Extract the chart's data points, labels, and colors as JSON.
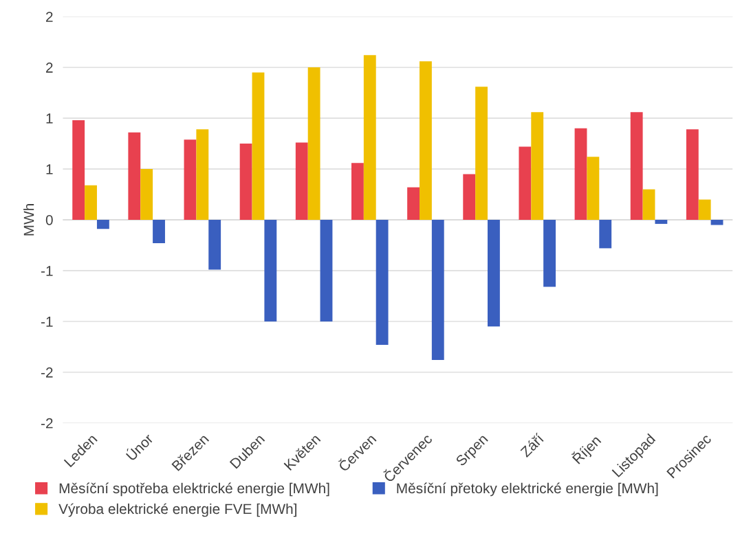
{
  "chart_data": {
    "type": "bar",
    "ylabel": "MWh",
    "categories": [
      "Leden",
      "Únor",
      "Březen",
      "Duben",
      "Květen",
      "Červen",
      "Červenec",
      "Srpen",
      "Září",
      "Říjen",
      "Listopad",
      "Prosinec"
    ],
    "series": [
      {
        "name": "Měsíční spotřeba elektrické energie [MWh]",
        "color": "#e8414f",
        "values": [
          0.98,
          0.86,
          0.79,
          0.75,
          0.76,
          0.56,
          0.32,
          0.45,
          0.72,
          0.9,
          1.06,
          0.89
        ]
      },
      {
        "name": "Výroba elektrické energie FVE [MWh]",
        "color": "#f0c000",
        "values": [
          0.34,
          0.5,
          0.89,
          1.45,
          1.5,
          1.62,
          1.56,
          1.31,
          1.06,
          0.62,
          0.3,
          0.2
        ]
      },
      {
        "name": "Měsíční přetoky elektrické energie [MWh]",
        "color": "#3a5fbf",
        "values": [
          -0.09,
          -0.23,
          -0.49,
          -1.0,
          -1.0,
          -1.23,
          -1.38,
          -1.05,
          -0.66,
          -0.28,
          -0.04,
          -0.05
        ]
      }
    ],
    "ylim": [
      -2,
      2
    ],
    "yticks": [
      {
        "value": -2,
        "label": "-2"
      },
      {
        "value": -1.5,
        "label": "-2"
      },
      {
        "value": -1,
        "label": "-1"
      },
      {
        "value": -0.5,
        "label": "-1"
      },
      0,
      {
        "value": 0.5,
        "label": "1"
      },
      {
        "value": 1,
        "label": "1"
      },
      {
        "value": 1.5,
        "label": "2"
      },
      {
        "value": 2,
        "label": "2"
      }
    ],
    "grid": "y",
    "legend": "bottom"
  }
}
